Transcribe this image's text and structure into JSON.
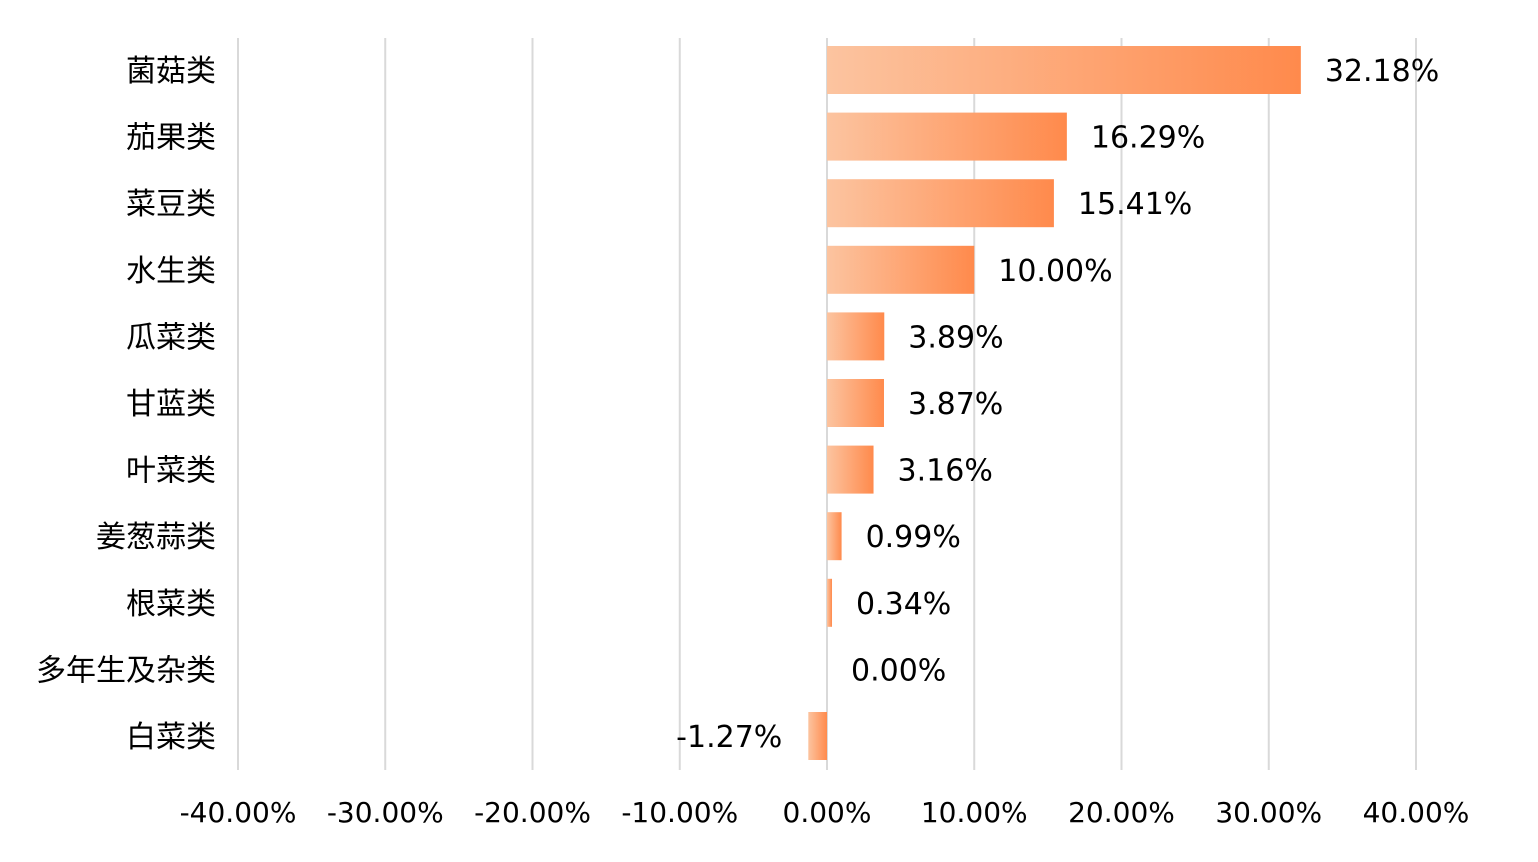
{
  "chart_data": {
    "type": "bar",
    "orientation": "horizontal",
    "categories": [
      "菌菇类",
      "茄果类",
      "菜豆类",
      "水生类",
      "瓜菜类",
      "甘蓝类",
      "叶菜类",
      "姜葱蒜类",
      "根菜类",
      "多年生及杂类",
      "白菜类"
    ],
    "values": [
      32.18,
      16.29,
      15.41,
      10.0,
      3.89,
      3.87,
      3.16,
      0.99,
      0.34,
      0.0,
      -1.27
    ],
    "value_labels": [
      "32.18%",
      "16.29%",
      "15.41%",
      "10.00%",
      "3.89%",
      "3.87%",
      "3.16%",
      "0.99%",
      "0.34%",
      "0.00%",
      "-1.27%"
    ],
    "xlim": [
      -40,
      40
    ],
    "xticks": [
      -40,
      -30,
      -20,
      -10,
      0,
      10,
      20,
      30,
      40
    ],
    "xtick_labels": [
      "-40.00%",
      "-30.00%",
      "-20.00%",
      "-10.00%",
      "0.00%",
      "10.00%",
      "20.00%",
      "30.00%",
      "40.00%"
    ],
    "title": "",
    "xlabel": "",
    "ylabel": "",
    "grid": "vertical",
    "legend": "none",
    "colors": {
      "bar_start": "#fcc4a0",
      "bar_end": "#ff8a4c",
      "grid": "#d9d9d9",
      "text": "#000000"
    }
  }
}
